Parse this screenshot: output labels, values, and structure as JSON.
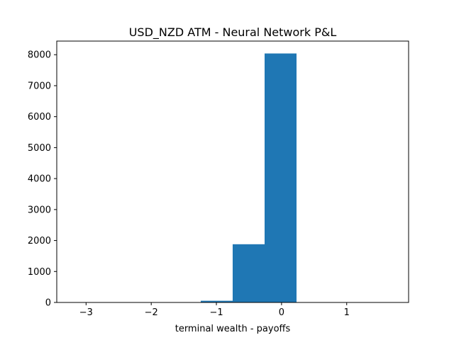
{
  "chart_data": {
    "type": "bar",
    "title": "USD_NZD ATM - Neural Network P&L",
    "xlabel": "terminal wealth - payoffs",
    "ylabel": "",
    "bar_color": "#1f77b4",
    "xlim": [
      -3.45,
      1.95
    ],
    "ylim": [
      0,
      8440
    ],
    "x_ticks": [
      {
        "value": -3,
        "label": "−3"
      },
      {
        "value": -2,
        "label": "−2"
      },
      {
        "value": -1,
        "label": "−1"
      },
      {
        "value": 0,
        "label": "0"
      },
      {
        "value": 1,
        "label": "1"
      }
    ],
    "y_ticks": [
      {
        "value": 0,
        "label": "0"
      },
      {
        "value": 1000,
        "label": "1000"
      },
      {
        "value": 2000,
        "label": "2000"
      },
      {
        "value": 3000,
        "label": "3000"
      },
      {
        "value": 4000,
        "label": "4000"
      },
      {
        "value": 5000,
        "label": "5000"
      },
      {
        "value": 6000,
        "label": "6000"
      },
      {
        "value": 7000,
        "label": "7000"
      },
      {
        "value": 8000,
        "label": "8000"
      }
    ],
    "bins": [
      {
        "x0": -3.2,
        "x1": -2.71,
        "count": 1
      },
      {
        "x0": -2.71,
        "x1": -2.22,
        "count": 0
      },
      {
        "x0": -2.22,
        "x1": -1.73,
        "count": 1
      },
      {
        "x0": -1.73,
        "x1": -1.24,
        "count": 3
      },
      {
        "x0": -1.24,
        "x1": -0.75,
        "count": 55
      },
      {
        "x0": -0.75,
        "x1": -0.26,
        "count": 1880
      },
      {
        "x0": -0.26,
        "x1": 0.23,
        "count": 8040
      },
      {
        "x0": 0.23,
        "x1": 0.72,
        "count": 8
      },
      {
        "x0": 0.72,
        "x1": 1.21,
        "count": 2
      },
      {
        "x0": 1.21,
        "x1": 1.7,
        "count": 1
      }
    ]
  }
}
